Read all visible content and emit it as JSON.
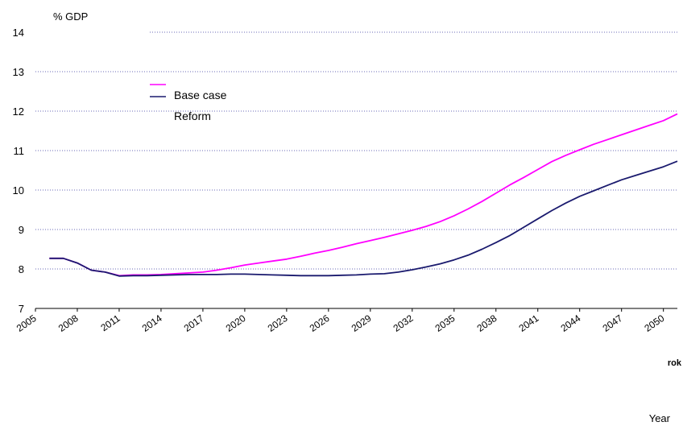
{
  "chart_data": {
    "type": "line",
    "title": "",
    "ylabel": "% GDP",
    "xlabel": "rok",
    "caption": "Year",
    "ylim": [
      7,
      14
    ],
    "xlim": [
      2005,
      2051
    ],
    "yticks": [
      7,
      8,
      9,
      10,
      11,
      12,
      13,
      14
    ],
    "xticks": [
      2005,
      2008,
      2011,
      2014,
      2017,
      2020,
      2023,
      2026,
      2029,
      2032,
      2035,
      2038,
      2041,
      2044,
      2047,
      2050
    ],
    "grid": "horizontal-dotted",
    "legend": {
      "position": "top-left",
      "entries": [
        "Base case",
        "Reform"
      ]
    },
    "series": [
      {
        "name": "Base case",
        "color": "#ff00ff",
        "x": [
          2006,
          2007,
          2008,
          2009,
          2010,
          2011,
          2012,
          2013,
          2014,
          2015,
          2016,
          2017,
          2018,
          2019,
          2020,
          2021,
          2022,
          2023,
          2024,
          2025,
          2026,
          2027,
          2028,
          2029,
          2030,
          2031,
          2032,
          2033,
          2034,
          2035,
          2036,
          2037,
          2038,
          2039,
          2040,
          2041,
          2042,
          2043,
          2044,
          2045,
          2046,
          2047,
          2048,
          2049,
          2050,
          2051
        ],
        "values": [
          8.27,
          8.27,
          8.15,
          7.97,
          7.92,
          7.83,
          7.85,
          7.85,
          7.86,
          7.88,
          7.9,
          7.92,
          7.97,
          8.03,
          8.1,
          8.15,
          8.2,
          8.25,
          8.32,
          8.4,
          8.47,
          8.55,
          8.64,
          8.72,
          8.8,
          8.89,
          8.98,
          9.08,
          9.2,
          9.35,
          9.52,
          9.71,
          9.92,
          10.13,
          10.32,
          10.52,
          10.72,
          10.88,
          11.02,
          11.16,
          11.28,
          11.4,
          11.52,
          11.64,
          11.76,
          11.93
        ]
      },
      {
        "name": "Reform",
        "color": "#1a1a6e",
        "x": [
          2006,
          2007,
          2008,
          2009,
          2010,
          2011,
          2012,
          2013,
          2014,
          2015,
          2016,
          2017,
          2018,
          2019,
          2020,
          2021,
          2022,
          2023,
          2024,
          2025,
          2026,
          2027,
          2028,
          2029,
          2030,
          2031,
          2032,
          2033,
          2034,
          2035,
          2036,
          2037,
          2038,
          2039,
          2040,
          2041,
          2042,
          2043,
          2044,
          2045,
          2046,
          2047,
          2048,
          2049,
          2050,
          2051
        ],
        "values": [
          8.27,
          8.27,
          8.15,
          7.97,
          7.92,
          7.82,
          7.83,
          7.83,
          7.84,
          7.85,
          7.86,
          7.86,
          7.86,
          7.87,
          7.87,
          7.86,
          7.85,
          7.84,
          7.83,
          7.83,
          7.83,
          7.84,
          7.85,
          7.87,
          7.88,
          7.92,
          7.98,
          8.05,
          8.13,
          8.23,
          8.35,
          8.5,
          8.67,
          8.85,
          9.06,
          9.27,
          9.48,
          9.67,
          9.84,
          9.98,
          10.12,
          10.26,
          10.37,
          10.48,
          10.59,
          10.73
        ]
      }
    ]
  }
}
